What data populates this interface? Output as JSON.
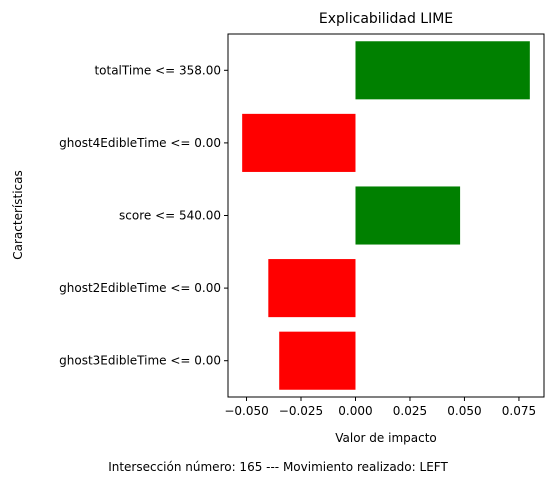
{
  "chart_data": {
    "type": "bar",
    "orientation": "horizontal",
    "title": "Explicabilidad LIME",
    "xlabel": "Valor de impacto",
    "ylabel": "Características",
    "categories": [
      "totalTime <= 358.00",
      "ghost4EdibleTime <= 0.00",
      "score <= 540.00",
      "ghost2EdibleTime <= 0.00",
      "ghost3EdibleTime <= 0.00"
    ],
    "values": [
      0.08,
      -0.052,
      0.048,
      -0.04,
      -0.035
    ],
    "colors": [
      "#008000",
      "#ff0000",
      "#008000",
      "#ff0000",
      "#ff0000"
    ],
    "xlim": [
      -0.0585,
      0.0865
    ],
    "xticks": [
      -0.05,
      -0.025,
      0.0,
      0.025,
      0.05,
      0.075
    ],
    "xtick_labels": [
      "−0.050",
      "−0.025",
      "0.000",
      "0.025",
      "0.050",
      "0.075"
    ],
    "grid": false
  },
  "footer": {
    "caption": "Intersección número: 165 --- Movimiento realizado: LEFT"
  }
}
